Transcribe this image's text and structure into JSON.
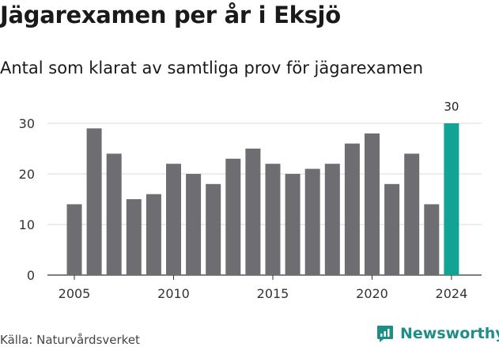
{
  "title": "Jägarexamen per år i Eksjö",
  "subtitle": "Antal som klarat av samtliga prov för jägarexamen",
  "source": "Källa: Naturvårdsverket",
  "brand": "Newsworthy",
  "colors": {
    "bar": "#6e6d72",
    "highlight": "#12a394",
    "grid": "#d9d9d9",
    "axis": "#333333",
    "brand": "#1e8e86"
  },
  "chart_data": {
    "type": "bar",
    "title": "Jägarexamen per år i Eksjö",
    "subtitle": "Antal som klarat av samtliga prov för jägarexamen",
    "xlabel": "",
    "ylabel": "",
    "categories": [
      2005,
      2006,
      2007,
      2008,
      2009,
      2010,
      2011,
      2012,
      2013,
      2014,
      2015,
      2016,
      2017,
      2018,
      2019,
      2020,
      2021,
      2022,
      2023,
      2024
    ],
    "values": [
      14,
      29,
      24,
      15,
      16,
      22,
      20,
      18,
      23,
      25,
      22,
      20,
      21,
      22,
      26,
      28,
      18,
      24,
      14,
      30
    ],
    "highlight": {
      "category": 2024,
      "label": "30"
    },
    "ylim": [
      0,
      30
    ],
    "yticks": [
      0,
      10,
      20,
      30
    ],
    "xticks": [
      2005,
      2010,
      2015,
      2020,
      2024
    ],
    "grid": "horizontal",
    "legend": "none"
  }
}
